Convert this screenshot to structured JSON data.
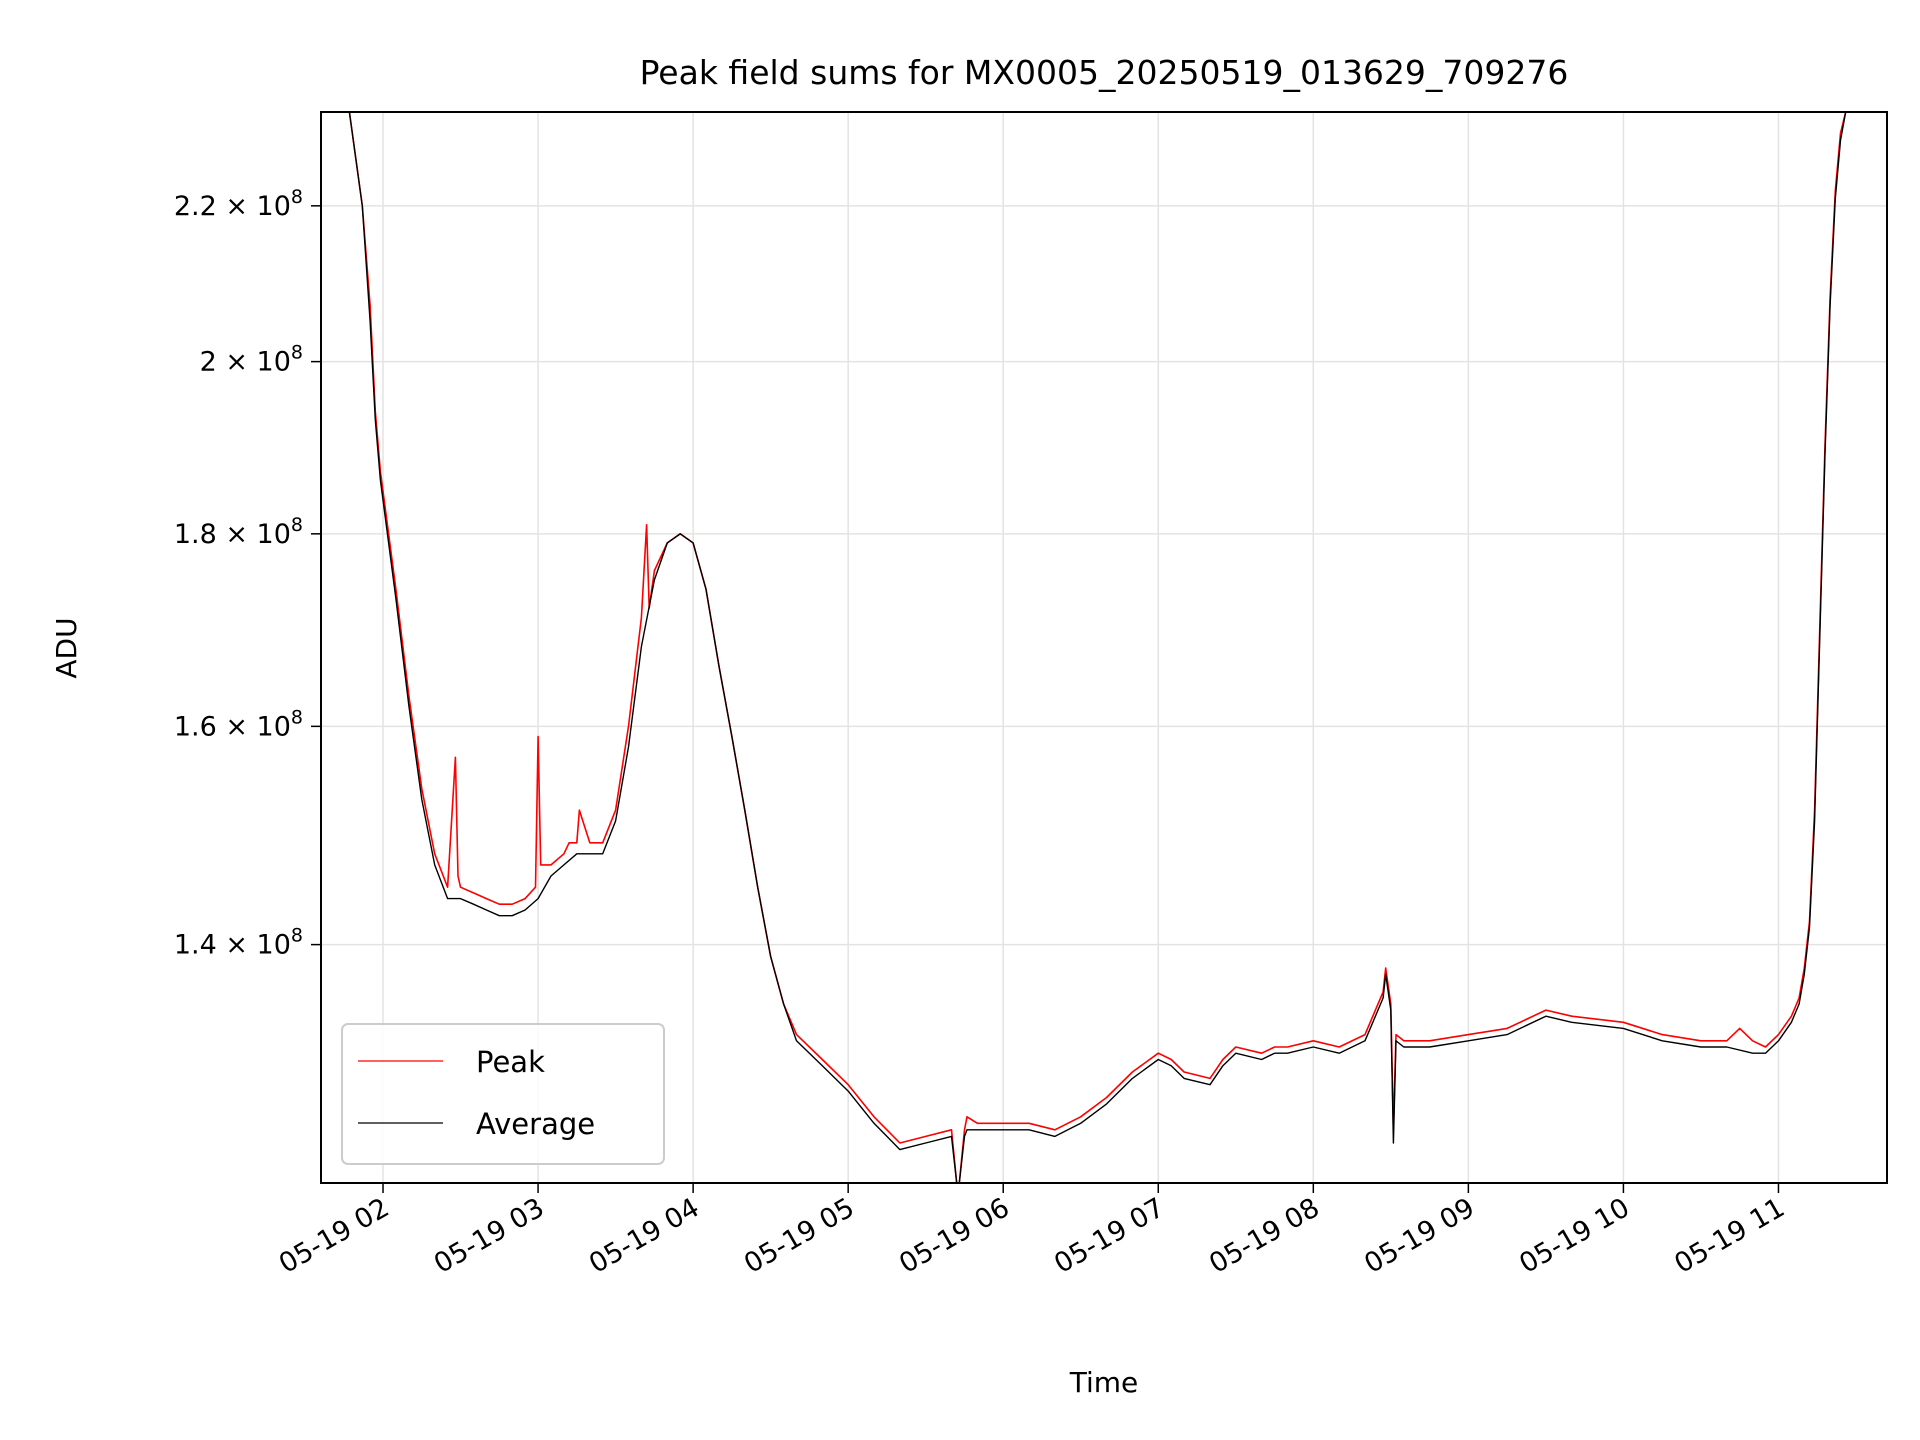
{
  "chart_data": {
    "type": "line",
    "title": "Peak field sums for MX0005_20250519_013629_709276",
    "xlabel": "Time",
    "ylabel": "ADU",
    "y_scale": "log",
    "x_axis_type": "datetime",
    "xlim": [
      "2025-05-19 01:36",
      "2025-05-19 11:42"
    ],
    "ylim": [
      121000000.0,
      233000000.0
    ],
    "grid": true,
    "legend_position": "lower-left",
    "x_ticks": [
      "05-19 02",
      "05-19 03",
      "05-19 04",
      "05-19 05",
      "05-19 06",
      "05-19 07",
      "05-19 08",
      "05-19 09",
      "05-19 10",
      "05-19 11"
    ],
    "y_ticks": [
      {
        "value": 140000000.0,
        "mantissa": "1.4",
        "exponent": "8"
      },
      {
        "value": 160000000.0,
        "mantissa": "1.6",
        "exponent": "8"
      },
      {
        "value": 180000000.0,
        "mantissa": "1.8",
        "exponent": "8"
      },
      {
        "value": 200000000.0,
        "mantissa": "2",
        "exponent": "8"
      },
      {
        "value": 220000000.0,
        "mantissa": "2.2",
        "exponent": "8"
      }
    ],
    "series": [
      {
        "name": "Peak",
        "color": "#ff0000",
        "x": [
          "2025-05-19 01:36",
          "2025-05-19 01:47",
          "2025-05-19 01:52",
          "2025-05-19 01:55",
          "2025-05-19 01:57",
          "2025-05-19 01:59",
          "2025-05-19 02:05",
          "2025-05-19 02:10",
          "2025-05-19 02:15",
          "2025-05-19 02:20",
          "2025-05-19 02:25",
          "2025-05-19 02:28",
          "2025-05-19 02:29",
          "2025-05-19 02:30",
          "2025-05-19 02:35",
          "2025-05-19 02:40",
          "2025-05-19 02:45",
          "2025-05-19 02:50",
          "2025-05-19 02:55",
          "2025-05-19 02:59",
          "2025-05-19 03:00",
          "2025-05-19 03:01",
          "2025-05-19 03:05",
          "2025-05-19 03:10",
          "2025-05-19 03:12",
          "2025-05-19 03:15",
          "2025-05-19 03:16",
          "2025-05-19 03:20",
          "2025-05-19 03:25",
          "2025-05-19 03:30",
          "2025-05-19 03:35",
          "2025-05-19 03:40",
          "2025-05-19 03:42",
          "2025-05-19 03:43",
          "2025-05-19 03:45",
          "2025-05-19 03:50",
          "2025-05-19 03:55",
          "2025-05-19 04:00",
          "2025-05-19 04:05",
          "2025-05-19 04:10",
          "2025-05-19 04:15",
          "2025-05-19 04:20",
          "2025-05-19 04:25",
          "2025-05-19 04:30",
          "2025-05-19 04:35",
          "2025-05-19 04:40",
          "2025-05-19 04:50",
          "2025-05-19 05:00",
          "2025-05-19 05:10",
          "2025-05-19 05:20",
          "2025-05-19 05:30",
          "2025-05-19 05:40",
          "2025-05-19 05:42",
          "2025-05-19 05:43",
          "2025-05-19 05:45",
          "2025-05-19 05:46",
          "2025-05-19 05:50",
          "2025-05-19 05:55",
          "2025-05-19 06:00",
          "2025-05-19 06:10",
          "2025-05-19 06:20",
          "2025-05-19 06:30",
          "2025-05-19 06:40",
          "2025-05-19 06:50",
          "2025-05-19 07:00",
          "2025-05-19 07:05",
          "2025-05-19 07:10",
          "2025-05-19 07:20",
          "2025-05-19 07:25",
          "2025-05-19 07:30",
          "2025-05-19 07:40",
          "2025-05-19 07:45",
          "2025-05-19 07:50",
          "2025-05-19 08:00",
          "2025-05-19 08:10",
          "2025-05-19 08:20",
          "2025-05-19 08:27",
          "2025-05-19 08:28",
          "2025-05-19 08:30",
          "2025-05-19 08:31",
          "2025-05-19 08:32",
          "2025-05-19 08:35",
          "2025-05-19 08:45",
          "2025-05-19 09:00",
          "2025-05-19 09:15",
          "2025-05-19 09:30",
          "2025-05-19 09:40",
          "2025-05-19 10:00",
          "2025-05-19 10:15",
          "2025-05-19 10:30",
          "2025-05-19 10:40",
          "2025-05-19 10:45",
          "2025-05-19 10:50",
          "2025-05-19 10:55",
          "2025-05-19 11:00",
          "2025-05-19 11:05",
          "2025-05-19 11:08",
          "2025-05-19 11:10",
          "2025-05-19 11:12",
          "2025-05-19 11:14",
          "2025-05-19 11:16",
          "2025-05-19 11:18",
          "2025-05-19 11:20",
          "2025-05-19 11:22",
          "2025-05-19 11:24",
          "2025-05-19 11:26",
          "2025-05-19 11:28",
          "2025-05-19 11:42"
        ],
        "y": [
          233000000.0,
          233000000.0,
          220000000.0,
          207000000.0,
          194000000.0,
          187000000.0,
          174000000.0,
          163000000.0,
          154000000.0,
          148000000.0,
          145000000.0,
          157000000.0,
          146000000.0,
          145000000.0,
          144500000.0,
          144000000.0,
          143500000.0,
          143500000.0,
          144000000.0,
          145000000.0,
          159000000.0,
          147000000.0,
          147000000.0,
          148000000.0,
          149000000.0,
          149000000.0,
          152000000.0,
          149000000.0,
          149000000.0,
          152000000.0,
          160000000.0,
          171000000.0,
          181000000.0,
          172000000.0,
          176000000.0,
          179000000.0,
          180000000.0,
          179000000.0,
          174000000.0,
          166000000.0,
          159000000.0,
          152000000.0,
          145000000.0,
          139000000.0,
          135000000.0,
          132500000.0,
          130500000.0,
          128500000.0,
          126000000.0,
          124000000.0,
          124500000.0,
          125000000.0,
          121000000.0,
          121000000.0,
          125000000.0,
          126000000.0,
          125500000.0,
          125500000.0,
          125500000.0,
          125500000.0,
          125000000.0,
          126000000.0,
          127500000.0,
          129500000.0,
          131000000.0,
          130500000.0,
          129500000.0,
          129000000.0,
          130500000.0,
          131500000.0,
          131000000.0,
          131500000.0,
          131500000.0,
          132000000.0,
          131500000.0,
          132500000.0,
          136000000.0,
          138000000.0,
          135000000.0,
          125000000.0,
          132500000.0,
          132000000.0,
          132000000.0,
          132500000.0,
          133000000.0,
          134500000.0,
          134000000.0,
          133500000.0,
          132500000.0,
          132000000.0,
          132000000.0,
          133000000.0,
          132000000.0,
          131500000.0,
          132500000.0,
          134000000.0,
          135500000.0,
          138000000.0,
          142000000.0,
          152000000.0,
          170000000.0,
          190000000.0,
          208000000.0,
          222000000.0,
          230000000.0,
          233000000.0,
          233000000.0,
          233000000.0
        ]
      },
      {
        "name": "Average",
        "color": "#000000",
        "x": [
          "2025-05-19 01:36",
          "2025-05-19 01:47",
          "2025-05-19 01:52",
          "2025-05-19 01:55",
          "2025-05-19 01:57",
          "2025-05-19 01:59",
          "2025-05-19 02:05",
          "2025-05-19 02:10",
          "2025-05-19 02:15",
          "2025-05-19 02:20",
          "2025-05-19 02:25",
          "2025-05-19 02:30",
          "2025-05-19 02:35",
          "2025-05-19 02:40",
          "2025-05-19 02:45",
          "2025-05-19 02:50",
          "2025-05-19 02:55",
          "2025-05-19 03:00",
          "2025-05-19 03:05",
          "2025-05-19 03:10",
          "2025-05-19 03:15",
          "2025-05-19 03:20",
          "2025-05-19 03:25",
          "2025-05-19 03:30",
          "2025-05-19 03:35",
          "2025-05-19 03:40",
          "2025-05-19 03:45",
          "2025-05-19 03:50",
          "2025-05-19 03:55",
          "2025-05-19 04:00",
          "2025-05-19 04:05",
          "2025-05-19 04:10",
          "2025-05-19 04:15",
          "2025-05-19 04:20",
          "2025-05-19 04:25",
          "2025-05-19 04:30",
          "2025-05-19 04:35",
          "2025-05-19 04:40",
          "2025-05-19 04:50",
          "2025-05-19 05:00",
          "2025-05-19 05:10",
          "2025-05-19 05:20",
          "2025-05-19 05:30",
          "2025-05-19 05:40",
          "2025-05-19 05:42",
          "2025-05-19 05:43",
          "2025-05-19 05:45",
          "2025-05-19 05:46",
          "2025-05-19 05:50",
          "2025-05-19 05:55",
          "2025-05-19 06:00",
          "2025-05-19 06:10",
          "2025-05-19 06:20",
          "2025-05-19 06:30",
          "2025-05-19 06:40",
          "2025-05-19 06:50",
          "2025-05-19 07:00",
          "2025-05-19 07:05",
          "2025-05-19 07:10",
          "2025-05-19 07:20",
          "2025-05-19 07:25",
          "2025-05-19 07:30",
          "2025-05-19 07:40",
          "2025-05-19 07:45",
          "2025-05-19 07:50",
          "2025-05-19 08:00",
          "2025-05-19 08:10",
          "2025-05-19 08:20",
          "2025-05-19 08:27",
          "2025-05-19 08:28",
          "2025-05-19 08:30",
          "2025-05-19 08:31",
          "2025-05-19 08:32",
          "2025-05-19 08:35",
          "2025-05-19 08:45",
          "2025-05-19 09:00",
          "2025-05-19 09:15",
          "2025-05-19 09:30",
          "2025-05-19 09:40",
          "2025-05-19 10:00",
          "2025-05-19 10:15",
          "2025-05-19 10:30",
          "2025-05-19 10:40",
          "2025-05-19 10:50",
          "2025-05-19 10:55",
          "2025-05-19 11:00",
          "2025-05-19 11:05",
          "2025-05-19 11:08",
          "2025-05-19 11:10",
          "2025-05-19 11:12",
          "2025-05-19 11:14",
          "2025-05-19 11:16",
          "2025-05-19 11:18",
          "2025-05-19 11:20",
          "2025-05-19 11:22",
          "2025-05-19 11:24",
          "2025-05-19 11:26",
          "2025-05-19 11:28",
          "2025-05-19 11:42"
        ],
        "y": [
          233000000.0,
          233000000.0,
          220000000.0,
          205000000.0,
          193000000.0,
          186000000.0,
          173000000.0,
          162000000.0,
          153000000.0,
          147000000.0,
          144000000.0,
          144000000.0,
          143500000.0,
          143000000.0,
          142500000.0,
          142500000.0,
          143000000.0,
          144000000.0,
          146000000.0,
          147000000.0,
          148000000.0,
          148000000.0,
          148000000.0,
          151000000.0,
          158000000.0,
          168000000.0,
          175000000.0,
          179000000.0,
          180000000.0,
          179000000.0,
          174000000.0,
          166000000.0,
          159000000.0,
          152000000.0,
          145000000.0,
          139000000.0,
          135000000.0,
          132000000.0,
          130000000.0,
          128000000.0,
          125500000.0,
          123500000.0,
          124000000.0,
          124500000.0,
          121000000.0,
          121000000.0,
          124500000.0,
          125000000.0,
          125000000.0,
          125000000.0,
          125000000.0,
          125000000.0,
          124500000.0,
          125500000.0,
          127000000.0,
          129000000.0,
          130500000.0,
          130000000.0,
          129000000.0,
          128500000.0,
          130000000.0,
          131000000.0,
          130500000.0,
          131000000.0,
          131000000.0,
          131500000.0,
          131000000.0,
          132000000.0,
          135500000.0,
          137500000.0,
          134500000.0,
          124000000.0,
          132000000.0,
          131500000.0,
          131500000.0,
          132000000.0,
          132500000.0,
          134000000.0,
          133500000.0,
          133000000.0,
          132000000.0,
          131500000.0,
          131500000.0,
          131000000.0,
          131000000.0,
          132000000.0,
          133500000.0,
          135000000.0,
          137500000.0,
          141500000.0,
          151000000.0,
          169000000.0,
          189000000.0,
          207000000.0,
          221000000.0,
          229000000.0,
          233000000.0,
          233000000.0,
          233000000.0
        ]
      }
    ]
  }
}
